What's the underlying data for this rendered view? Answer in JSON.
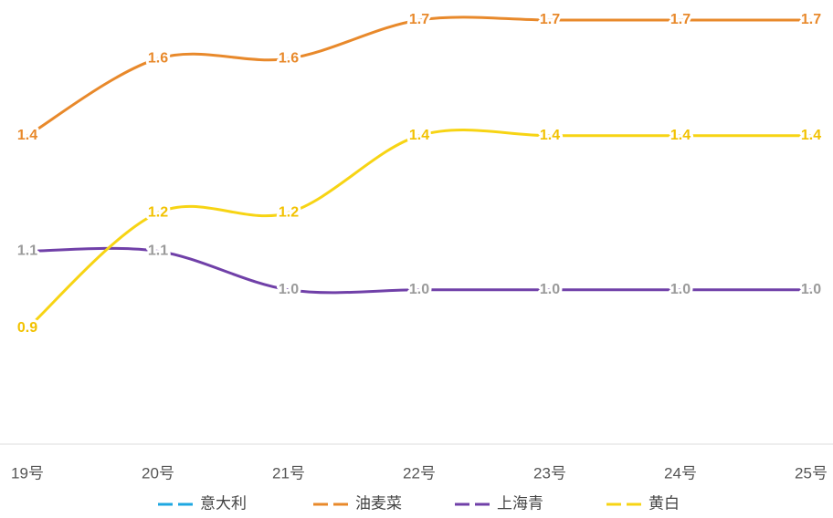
{
  "chart_data": {
    "type": "line",
    "categories": [
      "19号",
      "20号",
      "21号",
      "22号",
      "23号",
      "24号",
      "25号"
    ],
    "series": [
      {
        "name": "意大利",
        "color": "#1ea7e1",
        "label_color": "#1ea7e1",
        "values": [
          null,
          null,
          null,
          null,
          null,
          null,
          null
        ],
        "value_labels": [
          null,
          null,
          null,
          null,
          null,
          null,
          null
        ]
      },
      {
        "name": "油麦菜",
        "color": "#e8892b",
        "label_color": "#e8892b",
        "values": [
          1.4,
          1.6,
          1.6,
          1.7,
          1.7,
          1.7,
          1.7
        ],
        "value_labels": [
          "1.4",
          "1.6",
          "1.6",
          "1.7",
          "1.7",
          "1.7",
          "1.7"
        ]
      },
      {
        "name": "上海青",
        "color": "#7040a8",
        "label_color": "#9a9a9a",
        "values": [
          1.1,
          1.1,
          1.0,
          1.0,
          1.0,
          1.0,
          1.0
        ],
        "value_labels": [
          "1.1",
          "1.1",
          "1.0",
          "1.0",
          "1.0",
          "1.0",
          "1.0"
        ]
      },
      {
        "name": "黄白",
        "color": "#f7d414",
        "label_color": "#f2c200",
        "values": [
          0.9,
          1.2,
          1.2,
          1.4,
          1.4,
          1.4,
          1.4
        ],
        "value_labels": [
          "0.9",
          "1.2",
          "1.2",
          "1.4",
          "1.4",
          "1.4",
          "1.4"
        ]
      }
    ],
    "smooth": true,
    "legend": "bottom"
  }
}
